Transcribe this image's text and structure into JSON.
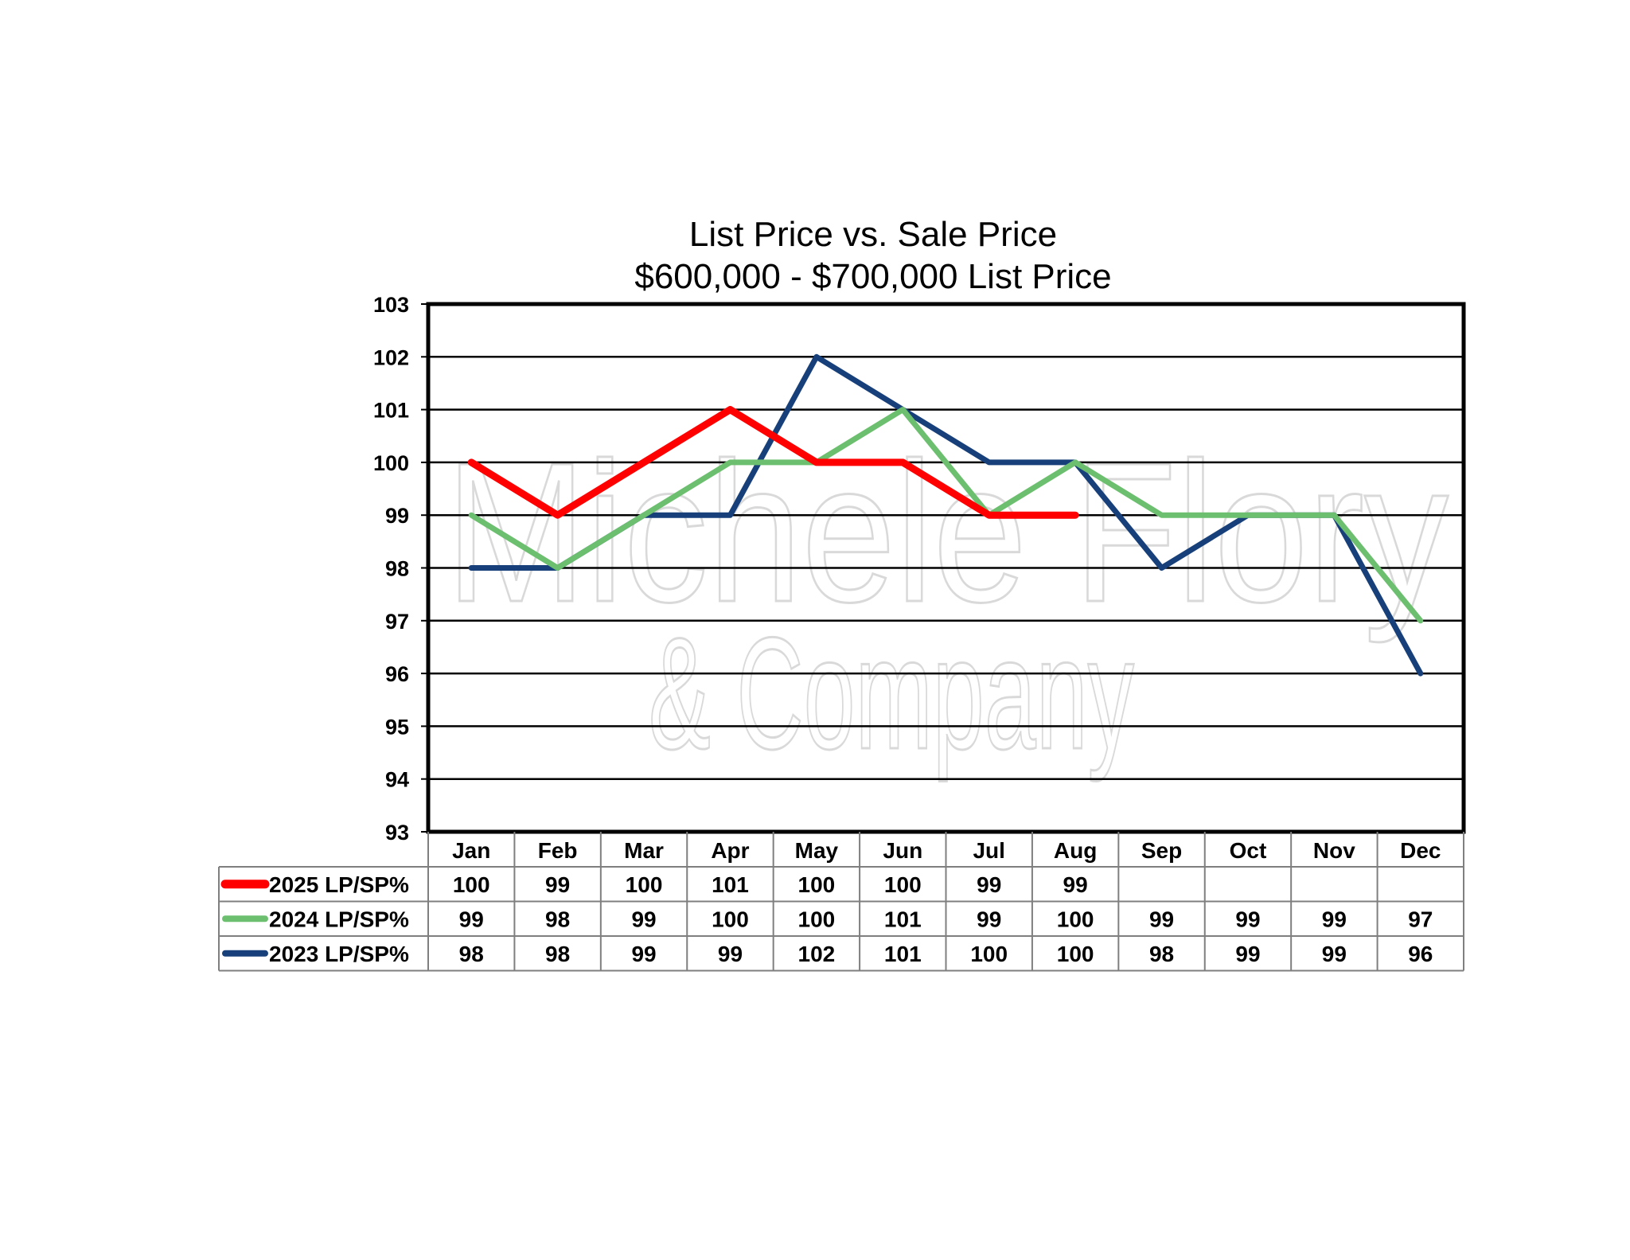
{
  "chart_data": {
    "type": "line",
    "title": "List Price vs. Sale Price",
    "subtitle": "$600,000 - $700,000 List Price",
    "categories": [
      "Jan",
      "Feb",
      "Mar",
      "Apr",
      "May",
      "Jun",
      "Jul",
      "Aug",
      "Sep",
      "Oct",
      "Nov",
      "Dec"
    ],
    "ylim": [
      93,
      103
    ],
    "yticks": [
      93,
      94,
      95,
      96,
      97,
      98,
      99,
      100,
      101,
      102,
      103
    ],
    "grid": true,
    "legend": "data-table-left",
    "series": [
      {
        "name": "2025 LP/SP%",
        "color": "#ff0000",
        "values": [
          100,
          99,
          100,
          101,
          100,
          100,
          99,
          99,
          null,
          null,
          null,
          null
        ]
      },
      {
        "name": "2024 LP/SP%",
        "color": "#6cbf6e",
        "values": [
          99,
          98,
          99,
          100,
          100,
          101,
          99,
          100,
          99,
          99,
          99,
          97
        ]
      },
      {
        "name": "2023 LP/SP%",
        "color": "#17407a",
        "values": [
          98,
          98,
          99,
          99,
          102,
          101,
          100,
          100,
          98,
          99,
          99,
          96
        ]
      }
    ],
    "watermark": [
      "Michele Flory",
      "& Company"
    ]
  }
}
